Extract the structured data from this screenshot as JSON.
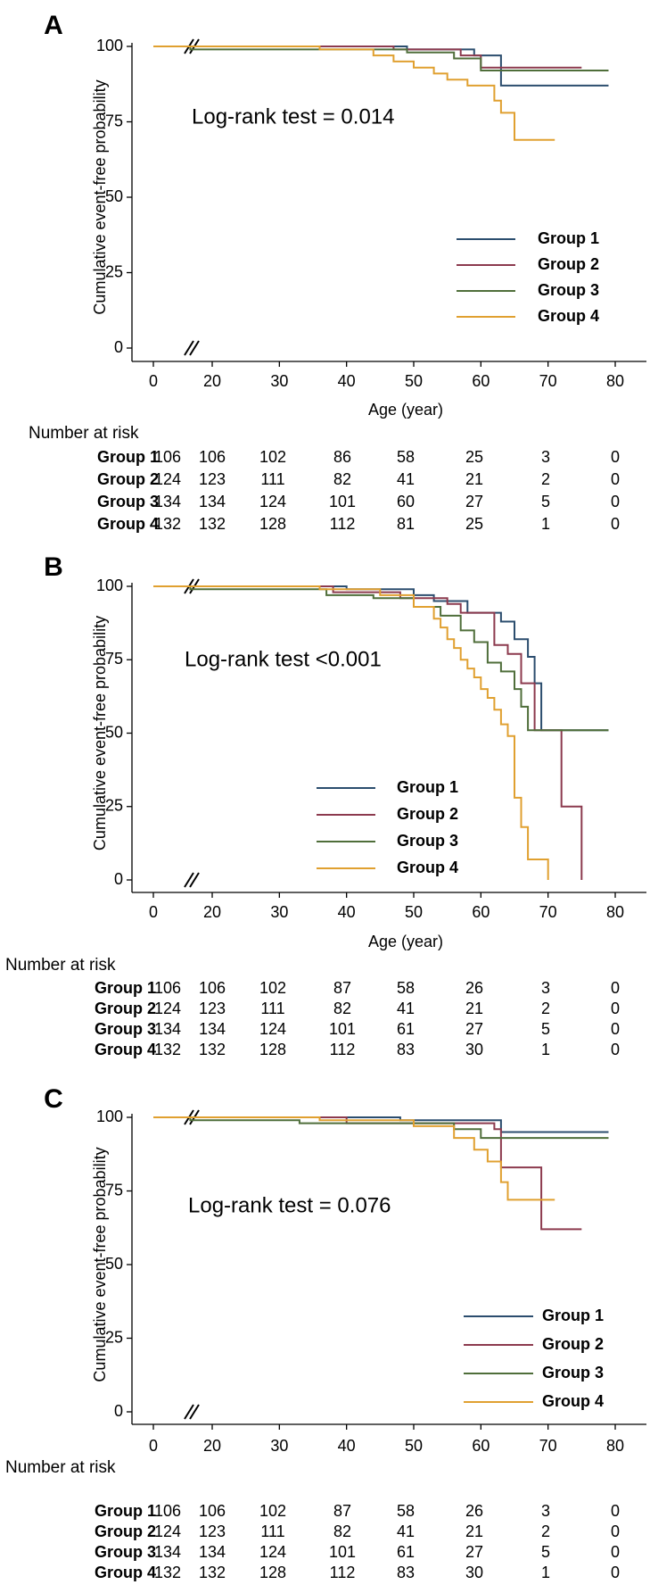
{
  "chart_data": [
    {
      "type": "line",
      "panel": "A",
      "annotation": "Log-rank test = 0.014",
      "ylabel": "Cumulative event-free probability",
      "xlabel": "Age (year)",
      "yticks": [
        "0",
        "25",
        "50",
        "75",
        "100"
      ],
      "xticks": [
        "0",
        "20",
        "30",
        "40",
        "50",
        "60",
        "70",
        "80"
      ],
      "ylim": [
        0,
        100
      ],
      "xlim": [
        0,
        80
      ],
      "axis_break": true,
      "legend_position": "lower-right",
      "series": [
        {
          "name": "Group 1",
          "color": "#2b4d6e",
          "points": [
            [
              0,
              100
            ],
            [
              49,
              100
            ],
            [
              49,
              99
            ],
            [
              59,
              99
            ],
            [
              59,
              97
            ],
            [
              63,
              97
            ],
            [
              63,
              87
            ],
            [
              79,
              87
            ]
          ]
        },
        {
          "name": "Group 2",
          "color": "#8c3a4e",
          "points": [
            [
              0,
              100
            ],
            [
              47,
              100
            ],
            [
              47,
              99
            ],
            [
              57,
              99
            ],
            [
              57,
              97
            ],
            [
              60,
              97
            ],
            [
              60,
              93
            ],
            [
              75,
              93
            ]
          ]
        },
        {
          "name": "Group 3",
          "color": "#4f6e3a",
          "points": [
            [
              0,
              100
            ],
            [
              18,
              100
            ],
            [
              18,
              99
            ],
            [
              49,
              99
            ],
            [
              49,
              98
            ],
            [
              56,
              98
            ],
            [
              56,
              96
            ],
            [
              60,
              96
            ],
            [
              60,
              92
            ],
            [
              79,
              92
            ]
          ]
        },
        {
          "name": "Group 4",
          "color": "#e0a030",
          "points": [
            [
              0,
              100
            ],
            [
              36,
              100
            ],
            [
              36,
              99
            ],
            [
              44,
              99
            ],
            [
              44,
              97
            ],
            [
              47,
              97
            ],
            [
              47,
              95
            ],
            [
              50,
              95
            ],
            [
              50,
              93
            ],
            [
              53,
              93
            ],
            [
              53,
              91
            ],
            [
              55,
              91
            ],
            [
              55,
              89
            ],
            [
              58,
              89
            ],
            [
              58,
              87
            ],
            [
              62,
              87
            ],
            [
              62,
              82
            ],
            [
              63,
              82
            ],
            [
              63,
              78
            ],
            [
              65,
              78
            ],
            [
              65,
              69
            ],
            [
              71,
              69
            ]
          ]
        }
      ],
      "risk_table": {
        "title": "Number at risk",
        "groups": [
          {
            "label": "Group 1",
            "values": [
              "106",
              "106",
              "102",
              "86",
              "58",
              "25",
              "3",
              "0"
            ]
          },
          {
            "label": "Group 2",
            "values": [
              "124",
              "123",
              "111",
              "82",
              "41",
              "21",
              "2",
              "0"
            ]
          },
          {
            "label": "Group 3",
            "values": [
              "134",
              "134",
              "124",
              "101",
              "60",
              "27",
              "5",
              "0"
            ]
          },
          {
            "label": "Group 4",
            "values": [
              "132",
              "132",
              "128",
              "112",
              "81",
              "25",
              "1",
              "0"
            ]
          }
        ]
      }
    },
    {
      "type": "line",
      "panel": "B",
      "annotation": "Log-rank test <0.001",
      "ylabel": "Cumulative event-free probability",
      "xlabel": "Age (year)",
      "yticks": [
        "0",
        "25",
        "50",
        "75",
        "100"
      ],
      "xticks": [
        "0",
        "20",
        "30",
        "40",
        "50",
        "60",
        "70",
        "80"
      ],
      "ylim": [
        0,
        100
      ],
      "xlim": [
        0,
        80
      ],
      "axis_break": true,
      "legend_position": "lower-right",
      "series": [
        {
          "name": "Group 1",
          "color": "#2b4d6e",
          "points": [
            [
              0,
              100
            ],
            [
              40,
              100
            ],
            [
              40,
              99
            ],
            [
              50,
              99
            ],
            [
              50,
              97
            ],
            [
              53,
              97
            ],
            [
              53,
              95
            ],
            [
              58,
              95
            ],
            [
              58,
              91
            ],
            [
              63,
              91
            ],
            [
              63,
              88
            ],
            [
              65,
              88
            ],
            [
              65,
              82
            ],
            [
              67,
              82
            ],
            [
              67,
              76
            ],
            [
              68,
              76
            ],
            [
              68,
              67
            ],
            [
              69,
              67
            ],
            [
              69,
              51
            ],
            [
              79,
              51
            ]
          ]
        },
        {
          "name": "Group 2",
          "color": "#8c3a4e",
          "points": [
            [
              0,
              100
            ],
            [
              38,
              100
            ],
            [
              38,
              98
            ],
            [
              48,
              98
            ],
            [
              48,
              96
            ],
            [
              55,
              96
            ],
            [
              55,
              94
            ],
            [
              57,
              94
            ],
            [
              57,
              91
            ],
            [
              62,
              91
            ],
            [
              62,
              80
            ],
            [
              64,
              80
            ],
            [
              64,
              77
            ],
            [
              66,
              77
            ],
            [
              66,
              67
            ],
            [
              68,
              67
            ],
            [
              68,
              51
            ],
            [
              72,
              51
            ],
            [
              72,
              25
            ],
            [
              75,
              25
            ],
            [
              75,
              0
            ]
          ]
        },
        {
          "name": "Group 3",
          "color": "#4f6e3a",
          "points": [
            [
              0,
              100
            ],
            [
              18,
              100
            ],
            [
              18,
              99
            ],
            [
              37,
              99
            ],
            [
              37,
              97
            ],
            [
              44,
              97
            ],
            [
              44,
              96
            ],
            [
              50,
              96
            ],
            [
              50,
              93
            ],
            [
              54,
              93
            ],
            [
              54,
              90
            ],
            [
              57,
              90
            ],
            [
              57,
              85
            ],
            [
              59,
              85
            ],
            [
              59,
              81
            ],
            [
              61,
              81
            ],
            [
              61,
              74
            ],
            [
              63,
              74
            ],
            [
              63,
              71
            ],
            [
              65,
              71
            ],
            [
              65,
              65
            ],
            [
              66,
              65
            ],
            [
              66,
              59
            ],
            [
              67,
              59
            ],
            [
              67,
              51
            ],
            [
              79,
              51
            ]
          ]
        },
        {
          "name": "Group 4",
          "color": "#e0a030",
          "points": [
            [
              0,
              100
            ],
            [
              36,
              100
            ],
            [
              36,
              99
            ],
            [
              45,
              99
            ],
            [
              45,
              97
            ],
            [
              50,
              97
            ],
            [
              50,
              93
            ],
            [
              53,
              93
            ],
            [
              53,
              89
            ],
            [
              54,
              89
            ],
            [
              54,
              86
            ],
            [
              55,
              86
            ],
            [
              55,
              82
            ],
            [
              56,
              82
            ],
            [
              56,
              79
            ],
            [
              57,
              79
            ],
            [
              57,
              75
            ],
            [
              58,
              75
            ],
            [
              58,
              72
            ],
            [
              59,
              72
            ],
            [
              59,
              69
            ],
            [
              60,
              69
            ],
            [
              60,
              65
            ],
            [
              61,
              65
            ],
            [
              61,
              62
            ],
            [
              62,
              62
            ],
            [
              62,
              58
            ],
            [
              63,
              58
            ],
            [
              63,
              53
            ],
            [
              64,
              53
            ],
            [
              64,
              49
            ],
            [
              65,
              49
            ],
            [
              65,
              28
            ],
            [
              66,
              28
            ],
            [
              66,
              18
            ],
            [
              67,
              18
            ],
            [
              67,
              7
            ],
            [
              70,
              7
            ],
            [
              70,
              0
            ]
          ]
        }
      ],
      "risk_table": {
        "title": "Number at risk",
        "groups": [
          {
            "label": "Group 1",
            "values": [
              "106",
              "106",
              "102",
              "87",
              "58",
              "26",
              "3",
              "0"
            ]
          },
          {
            "label": "Group 2",
            "values": [
              "124",
              "123",
              "111",
              "82",
              "41",
              "21",
              "2",
              "0"
            ]
          },
          {
            "label": "Group 3",
            "values": [
              "134",
              "134",
              "124",
              "101",
              "61",
              "27",
              "5",
              "0"
            ]
          },
          {
            "label": "Group 4",
            "values": [
              "132",
              "132",
              "128",
              "112",
              "83",
              "30",
              "1",
              "0"
            ]
          }
        ]
      }
    },
    {
      "type": "line",
      "panel": "C",
      "annotation": "Log-rank test = 0.076",
      "ylabel": "Cumulative event-free probability",
      "xlabel": "",
      "yticks": [
        "0",
        "25",
        "50",
        "75",
        "100"
      ],
      "xticks": [
        "0",
        "20",
        "30",
        "40",
        "50",
        "60",
        "70",
        "80"
      ],
      "ylim": [
        0,
        100
      ],
      "xlim": [
        0,
        80
      ],
      "axis_break": true,
      "legend_position": "lower-right",
      "series": [
        {
          "name": "Group 1",
          "color": "#2b4d6e",
          "points": [
            [
              0,
              100
            ],
            [
              48,
              100
            ],
            [
              48,
              99
            ],
            [
              63,
              99
            ],
            [
              63,
              95
            ],
            [
              79,
              95
            ]
          ]
        },
        {
          "name": "Group 2",
          "color": "#8c3a4e",
          "points": [
            [
              0,
              100
            ],
            [
              40,
              100
            ],
            [
              40,
              98
            ],
            [
              62,
              98
            ],
            [
              62,
              96
            ],
            [
              63,
              96
            ],
            [
              63,
              83
            ],
            [
              69,
              83
            ],
            [
              69,
              62
            ],
            [
              75,
              62
            ]
          ]
        },
        {
          "name": "Group 3",
          "color": "#4f6e3a",
          "points": [
            [
              0,
              100
            ],
            [
              18,
              100
            ],
            [
              18,
              99
            ],
            [
              33,
              99
            ],
            [
              33,
              98
            ],
            [
              56,
              98
            ],
            [
              56,
              96
            ],
            [
              60,
              96
            ],
            [
              60,
              93
            ],
            [
              79,
              93
            ]
          ]
        },
        {
          "name": "Group 4",
          "color": "#e0a030",
          "points": [
            [
              0,
              100
            ],
            [
              36,
              100
            ],
            [
              36,
              99
            ],
            [
              50,
              99
            ],
            [
              50,
              97
            ],
            [
              56,
              97
            ],
            [
              56,
              93
            ],
            [
              59,
              93
            ],
            [
              59,
              89
            ],
            [
              61,
              89
            ],
            [
              61,
              85
            ],
            [
              63,
              85
            ],
            [
              63,
              78
            ],
            [
              64,
              78
            ],
            [
              64,
              72
            ],
            [
              71,
              72
            ]
          ]
        }
      ],
      "risk_table": {
        "title": "Number at risk",
        "groups": [
          {
            "label": "Group 1",
            "values": [
              "106",
              "106",
              "102",
              "87",
              "58",
              "26",
              "3",
              "0"
            ]
          },
          {
            "label": "Group 2",
            "values": [
              "124",
              "123",
              "111",
              "82",
              "41",
              "21",
              "2",
              "0"
            ]
          },
          {
            "label": "Group 3",
            "values": [
              "134",
              "134",
              "124",
              "101",
              "61",
              "27",
              "5",
              "0"
            ]
          },
          {
            "label": "Group 4",
            "values": [
              "132",
              "132",
              "128",
              "112",
              "83",
              "30",
              "1",
              "0"
            ]
          }
        ]
      }
    }
  ]
}
